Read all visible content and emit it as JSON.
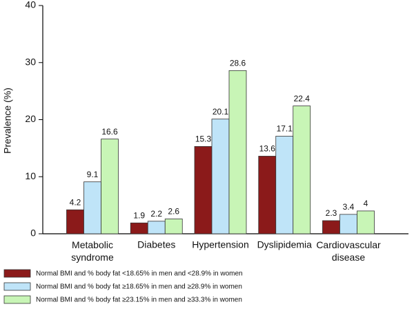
{
  "chart_data": {
    "type": "bar",
    "y_label": "Prevalence (%)",
    "categories": [
      "Metabolic syndrome",
      "Diabetes",
      "Hypertension",
      "Dyslipidemia",
      "Cardiovascular disease"
    ],
    "series": [
      {
        "name": "Normal BMI and % body fat <18.65% in men and <28.9% in women",
        "color": "#8b1a1a",
        "values": [
          4.2,
          1.9,
          15.3,
          13.6,
          2.3
        ]
      },
      {
        "name": "Normal BMI and % body fat ≥18.65% in men and ≥28.9% in women",
        "color": "#bfe4f8",
        "values": [
          9.1,
          2.2,
          20.1,
          17.1,
          3.4
        ]
      },
      {
        "name": "Normal BMI and % body fat ≥23.15% in men and ≥33.3% in women",
        "color": "#c8f5b6",
        "values": [
          16.6,
          2.6,
          28.6,
          22.4,
          4.0
        ]
      }
    ],
    "ylim": [
      0,
      40
    ],
    "yticks": [
      0,
      10,
      20,
      30,
      40
    ],
    "grid": false,
    "legend": "bottom"
  }
}
